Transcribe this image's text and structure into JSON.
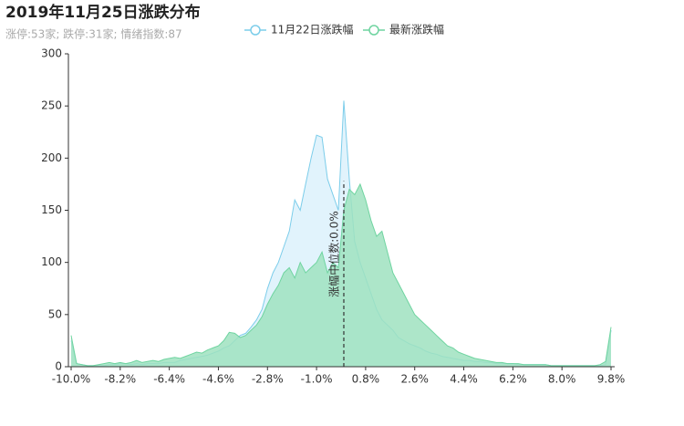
{
  "chart_data": {
    "type": "area",
    "title": "2019年11月25日涨跌分布",
    "subtitle": "涨停:53家; 跌停:31家; 情绪指数:87",
    "x": [
      -10,
      -9.8,
      -9.6,
      -9.4,
      -9.2,
      -9,
      -8.8,
      -8.6,
      -8.4,
      -8.2,
      -8,
      -7.8,
      -7.6,
      -7.4,
      -7.2,
      -7,
      -6.8,
      -6.6,
      -6.4,
      -6.2,
      -6,
      -5.8,
      -5.6,
      -5.4,
      -5.2,
      -5,
      -4.8,
      -4.6,
      -4.4,
      -4.2,
      -4,
      -3.8,
      -3.6,
      -3.4,
      -3.2,
      -3,
      -2.8,
      -2.6,
      -2.4,
      -2.2,
      -2,
      -1.8,
      -1.6,
      -1.4,
      -1.2,
      -1,
      -0.8,
      -0.6,
      -0.4,
      -0.2,
      0,
      0.2,
      0.4,
      0.6,
      0.8,
      1,
      1.2,
      1.4,
      1.6,
      1.8,
      2,
      2.2,
      2.4,
      2.6,
      2.8,
      3,
      3.2,
      3.4,
      3.6,
      3.8,
      4,
      4.2,
      4.4,
      4.6,
      4.8,
      5,
      5.2,
      5.4,
      5.6,
      5.8,
      6,
      6.2,
      6.4,
      6.6,
      6.8,
      7,
      7.2,
      7.4,
      7.6,
      7.8,
      8,
      8.2,
      8.4,
      8.6,
      8.8,
      9,
      9.2,
      9.4,
      9.6,
      9.8
    ],
    "series": [
      {
        "name": "11月22日涨跌幅",
        "color": "#7ccdea",
        "fill": "#dcf1fb",
        "values": [
          25,
          3,
          2,
          1,
          1,
          1,
          1,
          2,
          2,
          3,
          3,
          2,
          3,
          2,
          3,
          3,
          3,
          4,
          4,
          4,
          6,
          7,
          8,
          9,
          10,
          11,
          13,
          15,
          18,
          20,
          25,
          30,
          32,
          38,
          45,
          55,
          75,
          90,
          100,
          115,
          130,
          160,
          150,
          175,
          200,
          222,
          220,
          180,
          165,
          150,
          255,
          180,
          120,
          100,
          85,
          70,
          55,
          45,
          40,
          35,
          28,
          25,
          22,
          20,
          18,
          15,
          13,
          12,
          10,
          9,
          8,
          7,
          6,
          6,
          5,
          5,
          4,
          4,
          3,
          3,
          3,
          3,
          2,
          2,
          2,
          2,
          2,
          2,
          1,
          1,
          1,
          1,
          1,
          1,
          1,
          1,
          1,
          1,
          2,
          35
        ]
      },
      {
        "name": "最新涨跌幅",
        "color": "#6fd4a0",
        "fill": "#9fe2c0",
        "values": [
          30,
          3,
          2,
          1,
          1,
          2,
          3,
          4,
          3,
          4,
          3,
          4,
          6,
          4,
          5,
          6,
          5,
          7,
          8,
          9,
          8,
          10,
          12,
          14,
          13,
          16,
          18,
          20,
          25,
          33,
          32,
          28,
          30,
          35,
          40,
          48,
          60,
          70,
          78,
          90,
          95,
          85,
          100,
          90,
          95,
          100,
          110,
          90,
          100,
          95,
          150,
          170,
          165,
          175,
          160,
          140,
          125,
          130,
          110,
          90,
          80,
          70,
          60,
          50,
          45,
          40,
          35,
          30,
          25,
          20,
          18,
          14,
          12,
          10,
          8,
          7,
          6,
          5,
          4,
          4,
          3,
          3,
          3,
          2,
          2,
          2,
          2,
          2,
          1,
          1,
          1,
          1,
          1,
          1,
          1,
          1,
          1,
          2,
          5,
          38
        ]
      }
    ],
    "xlim": [
      -10,
      9.8
    ],
    "xticks": [
      {
        "value": -10,
        "label": "-10.0%"
      },
      {
        "value": -8.2,
        "label": "-8.2%"
      },
      {
        "value": -6.4,
        "label": "-6.4%"
      },
      {
        "value": -4.6,
        "label": "-4.6%"
      },
      {
        "value": -2.8,
        "label": "-2.8%"
      },
      {
        "value": -1,
        "label": "-1.0%"
      },
      {
        "value": 0.8,
        "label": "0.8%"
      },
      {
        "value": 2.6,
        "label": "2.6%"
      },
      {
        "value": 4.4,
        "label": "4.4%"
      },
      {
        "value": 6.2,
        "label": "6.2%"
      },
      {
        "value": 8,
        "label": "8.0%"
      },
      {
        "value": 9.8,
        "label": "9.8%"
      }
    ],
    "ylim": [
      0,
      300
    ],
    "yticks": [
      0,
      50,
      100,
      150,
      200,
      250,
      300
    ],
    "grid": false,
    "median_line": {
      "x": 0,
      "top": 178,
      "label": "涨幅中位数:0.0%"
    }
  }
}
